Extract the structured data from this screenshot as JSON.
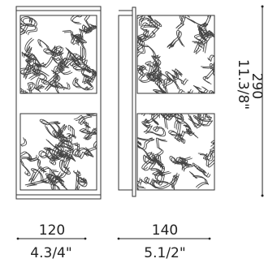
{
  "front_width": {
    "mm": "120",
    "inches": "4.3/4\""
  },
  "side_depth": {
    "mm": "140",
    "inches": "5.1/2\""
  },
  "height": {
    "mm": "290",
    "inches": "11.3/8\""
  },
  "colors": {
    "line": "#333333",
    "text": "#222222",
    "background": "#ffffff"
  },
  "icons": {
    "front_view": "wall-sconce-front-view",
    "side_view": "wall-sconce-side-view",
    "pattern": "swirl-pattern"
  }
}
